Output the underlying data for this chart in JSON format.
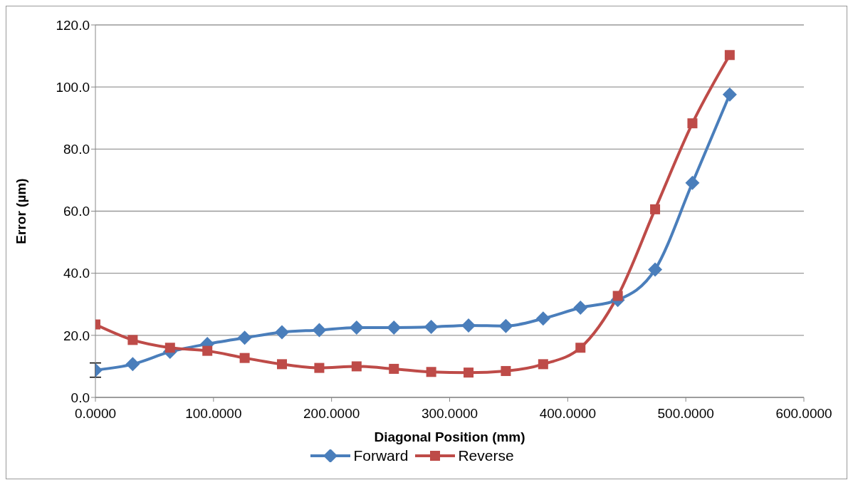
{
  "chart_data": {
    "type": "line",
    "xlabel": "Diagonal Position (mm)",
    "ylabel": "Error (µm)",
    "x": [
      0,
      31.6,
      63.2,
      94.8,
      126.4,
      158.0,
      189.6,
      221.2,
      252.8,
      284.4,
      316.0,
      347.6,
      379.2,
      410.8,
      442.4,
      474.0,
      505.6,
      537.2
    ],
    "series": [
      {
        "name": "Forward",
        "color": "#4a7ebb",
        "marker": "diamond",
        "values": [
          8.8,
          10.7,
          14.7,
          17.2,
          19.2,
          21.0,
          21.7,
          22.5,
          22.5,
          22.7,
          23.2,
          23.0,
          25.4,
          28.9,
          31.4,
          41.2,
          69.1,
          97.6
        ],
        "errors": [
          2.3,
          null,
          null,
          null,
          null,
          null,
          null,
          null,
          null,
          null,
          null,
          null,
          null,
          null,
          null,
          null,
          null,
          null
        ]
      },
      {
        "name": "Reverse",
        "color": "#be4b48",
        "marker": "square",
        "values": [
          23.5,
          18.5,
          16.0,
          15.0,
          12.7,
          10.7,
          9.5,
          10.0,
          9.2,
          8.2,
          8.0,
          8.5,
          10.7,
          16.0,
          32.7,
          60.6,
          88.3,
          110.3
        ]
      }
    ],
    "xlim": [
      0,
      600
    ],
    "xticks": [
      {
        "value": 0,
        "label": "0.0000"
      },
      {
        "value": 100,
        "label": "100.0000"
      },
      {
        "value": 200,
        "label": "200.0000"
      },
      {
        "value": 300,
        "label": "300.0000"
      },
      {
        "value": 400,
        "label": "400.0000"
      },
      {
        "value": 500,
        "label": "500.0000"
      },
      {
        "value": 600,
        "label": "600.0000"
      }
    ],
    "ylim": [
      0,
      120
    ],
    "yticks": [
      {
        "value": 0,
        "label": "0.0"
      },
      {
        "value": 20,
        "label": "20.0"
      },
      {
        "value": 40,
        "label": "40.0"
      },
      {
        "value": 60,
        "label": "60.0"
      },
      {
        "value": 80,
        "label": "80.0"
      },
      {
        "value": 100,
        "label": "100.0"
      },
      {
        "value": 120,
        "label": "120.0"
      }
    ],
    "grid": "y",
    "legend": "bottom",
    "line_style": "solid"
  }
}
